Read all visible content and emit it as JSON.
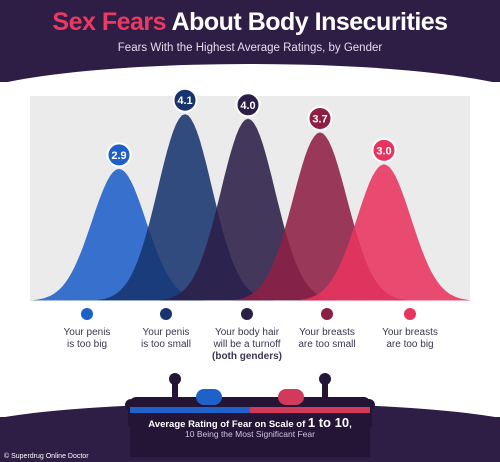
{
  "header": {
    "title_accent": "Sex Fears",
    "title_rest": " About Body Insecurities",
    "subtitle": "Fears With the Highest Average Ratings, by Gender"
  },
  "chart_data": {
    "type": "area",
    "title": "Sex Fears About Body Insecurities",
    "subtitle": "Fears With the Highest Average Ratings, by Gender",
    "ylim": [
      0,
      4.5
    ],
    "series": [
      {
        "name": "Your penis is too big",
        "value": 2.9,
        "label": "2.9",
        "color": "#1f5fc8"
      },
      {
        "name": "Your penis is too small",
        "value": 4.1,
        "label": "4.1",
        "color": "#17346f"
      },
      {
        "name": "Your body hair will be a turnoff (both genders)",
        "value": 4.0,
        "label": "4.0",
        "color": "#2b1f48"
      },
      {
        "name": "Your breasts are too small",
        "value": 3.7,
        "label": "3.7",
        "color": "#8e1f44"
      },
      {
        "name": "Your breasts are too big",
        "value": 3.0,
        "label": "3.0",
        "color": "#e8335f"
      }
    ]
  },
  "legend": [
    {
      "line1": "Your penis",
      "line2": "is too big",
      "line3": ""
    },
    {
      "line1": "Your penis",
      "line2": "is too small",
      "line3": ""
    },
    {
      "line1": "Your body hair",
      "line2": "will be a turnoff",
      "line3": "(both genders)"
    },
    {
      "line1": "Your breasts",
      "line2": "are too small",
      "line3": ""
    },
    {
      "line1": "Your breasts",
      "line2": "are too big",
      "line3": ""
    }
  ],
  "footer": {
    "line1_prefix": "Average Rating of Fear on Scale of ",
    "line1_scale": "1 to 10",
    "line1_suffix": ",",
    "line2": "10 Being the Most Significant Fear"
  },
  "colors": {
    "background_dark": "#2e1d45",
    "panel": "#ecebeb",
    "accent": "#ea3a63"
  },
  "credit": "© Superdrug Online Doctor"
}
